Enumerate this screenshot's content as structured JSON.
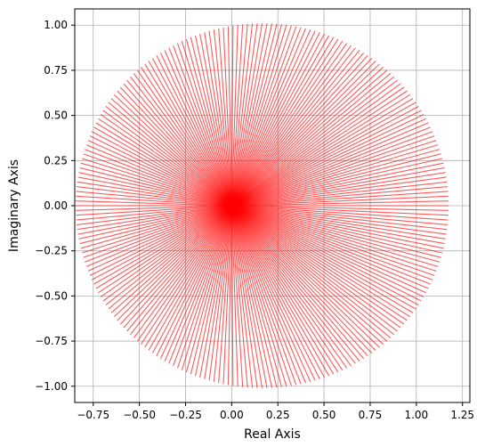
{
  "chart_data": {
    "type": "line",
    "title": "",
    "xlabel": "Real Axis",
    "ylabel": "Imaginary Axis",
    "xlim": [
      -0.85,
      1.29
    ],
    "ylim": [
      -1.09,
      1.09
    ],
    "xticks": [
      -0.75,
      -0.5,
      -0.25,
      0.0,
      0.25,
      0.5,
      0.75,
      1.0,
      1.25
    ],
    "xtick_labels": [
      "−0.75",
      "−0.50",
      "−0.25",
      "0.00",
      "0.25",
      "0.50",
      "0.75",
      "1.00",
      "1.25"
    ],
    "yticks": [
      1.0,
      0.75,
      0.5,
      0.25,
      0.0,
      -0.25,
      -0.5,
      -0.75,
      -1.0
    ],
    "ytick_labels": [
      "1.00",
      "0.75",
      "0.50",
      "0.25",
      "0.00",
      "−0.25",
      "−0.50",
      "−0.75",
      "−1.00"
    ],
    "grid": true,
    "legend": "none",
    "series": [
      {
        "description_of_shape": "radial rays from origin to a closed curve",
        "origin": [
          0.0,
          0.0
        ],
        "curve_center": [
          0.165,
          0.0
        ],
        "curve_radius": 1.01,
        "ray_count": 240,
        "color": "#ff0000",
        "alpha": 0.65
      }
    ]
  }
}
